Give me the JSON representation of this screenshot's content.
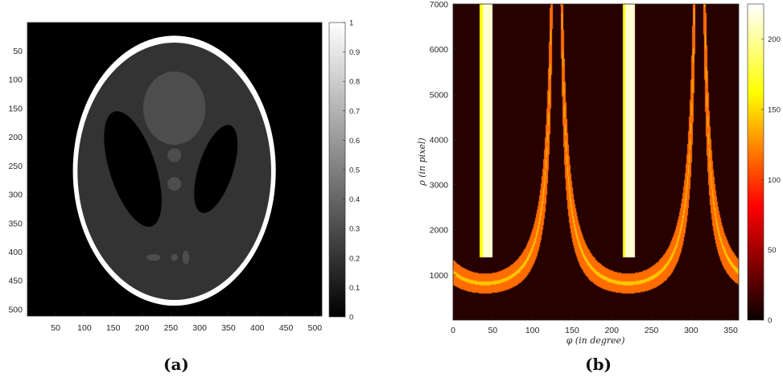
{
  "captions": {
    "a": "(a)",
    "b": "(b)"
  },
  "chart_data": [
    {
      "type": "heatmap",
      "description_panel": "a",
      "x": {
        "min": 1,
        "max": 512,
        "ticks": [
          50,
          100,
          150,
          200,
          250,
          300,
          350,
          400,
          450,
          500
        ]
      },
      "y": {
        "min": 1,
        "max": 512,
        "ticks": [
          50,
          100,
          150,
          200,
          250,
          300,
          350,
          400,
          450,
          500
        ],
        "reversed": true
      },
      "colorbar": {
        "min": 0,
        "max": 1,
        "ticks": [
          "0",
          "0.1",
          "0.2",
          "0.3",
          "0.4",
          "0.5",
          "0.6",
          "0.7",
          "0.8",
          "0.9",
          "1"
        ],
        "colormap": "gray"
      },
      "ellipses": [
        {
          "cx": 256,
          "cy": 259,
          "rx": 176,
          "ry": 235,
          "angle": 0,
          "value": 1.0
        },
        {
          "cx": 256,
          "cy": 260,
          "rx": 168,
          "ry": 224,
          "angle": 0,
          "value": 0.2
        },
        {
          "cx": 184,
          "cy": 256,
          "rx": 40,
          "ry": 105,
          "angle": -18,
          "value": 0.0
        },
        {
          "cx": 328,
          "cy": 256,
          "rx": 30,
          "ry": 80,
          "angle": 18,
          "value": 0.0
        },
        {
          "cx": 256,
          "cy": 150,
          "rx": 54,
          "ry": 64,
          "angle": 0,
          "value": 0.3
        },
        {
          "cx": 256,
          "cy": 232,
          "rx": 12,
          "ry": 12,
          "angle": 0,
          "value": 0.3
        },
        {
          "cx": 256,
          "cy": 282,
          "rx": 12,
          "ry": 12,
          "angle": 0,
          "value": 0.3
        },
        {
          "cx": 220,
          "cy": 410,
          "rx": 12,
          "ry": 6,
          "angle": 0,
          "value": 0.3
        },
        {
          "cx": 256,
          "cy": 410,
          "rx": 6,
          "ry": 6,
          "angle": 0,
          "value": 0.3
        },
        {
          "cx": 276,
          "cy": 410,
          "rx": 6,
          "ry": 12,
          "angle": 0,
          "value": 0.3
        }
      ]
    },
    {
      "type": "heatmap",
      "description_panel": "b",
      "xlabel": "φ (in degree)",
      "ylabel": "ρ (in pixel)",
      "x": {
        "min": 0,
        "max": 360,
        "ticks": [
          0,
          50,
          100,
          150,
          200,
          250,
          300,
          350
        ]
      },
      "y": {
        "min": 0,
        "max": 7000,
        "ticks": [
          1000,
          2000,
          3000,
          4000,
          5000,
          6000,
          7000
        ]
      },
      "colorbar": {
        "min": 0,
        "max": 225,
        "ticks": [
          0,
          50,
          100,
          150,
          200
        ],
        "colormap": "hot"
      },
      "base_value": 10,
      "sinogram_curves": [
        {
          "inner_amplitude": 600,
          "outer_amplitude": 1000,
          "phase": 130,
          "period": 180,
          "value": 120
        },
        {
          "inner_amplitude": 780,
          "outer_amplitude": 820,
          "phase": 130,
          "period": 180,
          "value": 150
        },
        {
          "inner_amplitude": 600,
          "outer_amplitude": 720,
          "phase": 130,
          "period": 180,
          "value": 100
        }
      ],
      "vertical_bands": [
        {
          "x_center": 43,
          "half_width": 6,
          "value": 215
        },
        {
          "x_center": 223,
          "half_width": 6,
          "value": 215
        },
        {
          "x_center": 36,
          "half_width": 3,
          "value": 170
        },
        {
          "x_center": 216,
          "half_width": 3,
          "value": 170
        }
      ]
    }
  ]
}
